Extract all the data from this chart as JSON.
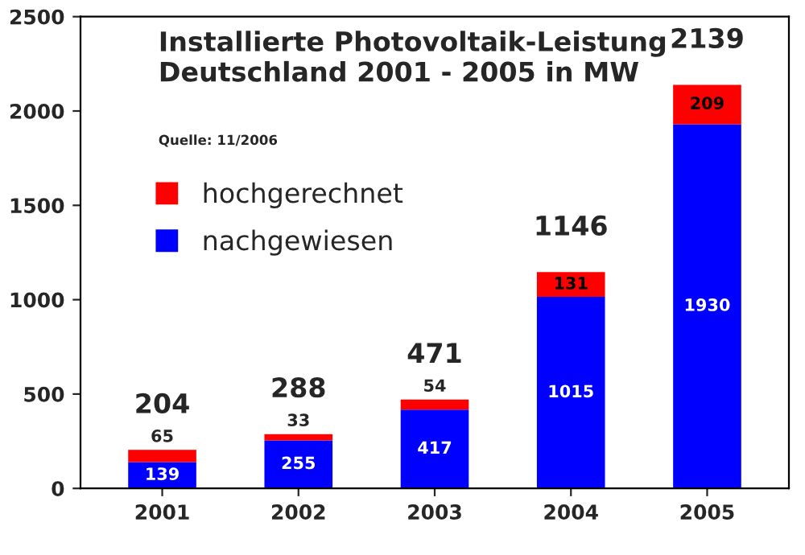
{
  "chart_data": {
    "type": "bar",
    "title": "Installierte Photovoltaik-Leistung\nDeutschland 2001 - 2005 in MW",
    "categories": [
      "2001",
      "2002",
      "2003",
      "2004",
      "2005"
    ],
    "stacked": true,
    "series": [
      {
        "name": "nachgewiesen",
        "color": "#0000ff",
        "values": [
          139,
          255,
          417,
          1015,
          1930
        ]
      },
      {
        "name": "hochgerechnet",
        "color": "#ff0000",
        "values": [
          65,
          33,
          54,
          131,
          209
        ]
      }
    ],
    "data_labels": true,
    "totals": [
      "204",
      "288",
      "471",
      "1146",
      "2139"
    ],
    "ylim": [
      0,
      2500
    ],
    "yticks": [
      0,
      500,
      1000,
      1500,
      2000,
      2500
    ],
    "grid": false,
    "legend": "top left",
    "annotations": [
      "Quelle: 11/2006"
    ]
  }
}
